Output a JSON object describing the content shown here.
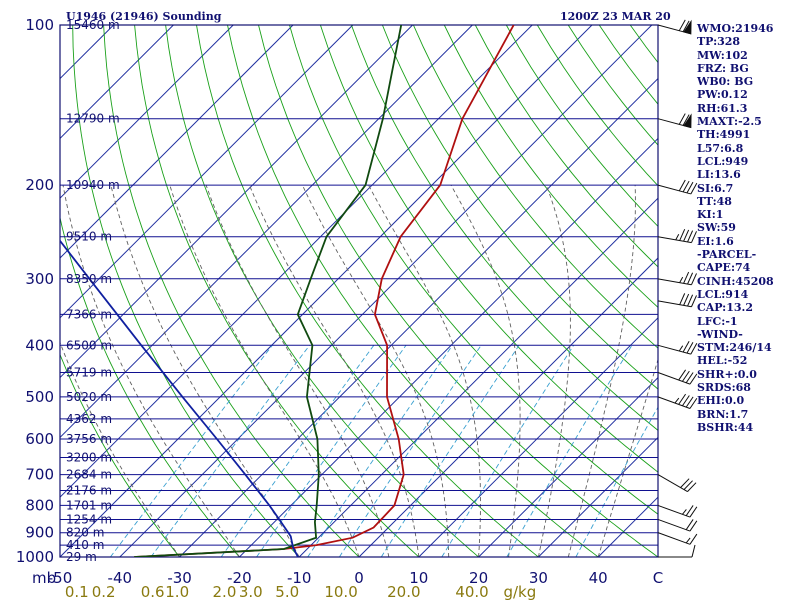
{
  "header": {
    "station": "U1946 (21946) Sounding",
    "time": "1200Z 23 MAR 20"
  },
  "indices": [
    "WMO:21946",
    "TP:328",
    "MW:102",
    "FRZ: BG",
    "WB0: BG",
    "PW:0.12",
    "RH:61.3",
    "MAXT:-2.5",
    "TH:4991",
    "L57:6.8",
    "LCL:949",
    "LI:13.6",
    "SI:6.7",
    "TT:48",
    "KI:1",
    "SW:59",
    "EI:1.6",
    "-PARCEL-",
    "CAPE:74",
    "CINH:45208",
    "LCL:914",
    "CAP:13.2",
    "LFC:-1",
    "-WIND-",
    "STM:246/14",
    "HEL:-52",
    "SHR+:0.0",
    "SRDS:68",
    "EHI:0.0",
    "BRN:1.7",
    "BSHR:44"
  ],
  "chart_data": {
    "type": "line",
    "pressure_levels": [
      100,
      200,
      300,
      400,
      500,
      600,
      700,
      800,
      900,
      1000
    ],
    "pressure_axis_unit": "mb",
    "temperature_ticks": [
      -50,
      -40,
      -30,
      -20,
      -10,
      0,
      10,
      20,
      30,
      40,
      50
    ],
    "temperature_tick_labels": [
      "-50",
      "-40",
      "-30",
      "-20",
      "-10",
      "0",
      "10",
      "20",
      "30",
      "40",
      "C"
    ],
    "mixing_ratio_ticks": [
      {
        "label": "0.1",
        "x": -47.2
      },
      {
        "label": "0.2",
        "x": -42.7
      },
      {
        "label": "0.6",
        "x": -34.5
      },
      {
        "label": "1.0",
        "x": -30.4
      },
      {
        "label": "2.0",
        "x": -22.5
      },
      {
        "label": "3.0",
        "x": -18.1
      },
      {
        "label": "5.0",
        "x": -12.0
      },
      {
        "label": "10.0",
        "x": -3.0
      },
      {
        "label": "20.0",
        "x": 7.5
      },
      {
        "label": "40.0",
        "x": 18.9
      },
      {
        "label": "g/kg",
        "x": 26.9
      }
    ],
    "height_labels": [
      {
        "p": 100,
        "label": "15460 m"
      },
      {
        "p": 150,
        "label": "12790 m"
      },
      {
        "p": 200,
        "label": "10940 m"
      },
      {
        "p": 250,
        "label": "9510 m"
      },
      {
        "p": 300,
        "label": "8350 m"
      },
      {
        "p": 350,
        "label": "7366 m"
      },
      {
        "p": 400,
        "label": "6500 m"
      },
      {
        "p": 450,
        "label": "5719 m"
      },
      {
        "p": 500,
        "label": "5020 m"
      },
      {
        "p": 550,
        "label": "4362 m"
      },
      {
        "p": 600,
        "label": "3756 m"
      },
      {
        "p": 650,
        "label": "3200 m"
      },
      {
        "p": 700,
        "label": "2684 m"
      },
      {
        "p": 750,
        "label": "2176 m"
      },
      {
        "p": 800,
        "label": "1701 m"
      },
      {
        "p": 850,
        "label": "1254 m"
      },
      {
        "p": 900,
        "label": "820 m"
      },
      {
        "p": 950,
        "label": "410 m"
      },
      {
        "p": 1000,
        "label": "29 m"
      }
    ],
    "series": [
      {
        "role": "temperature",
        "color": "#b01010",
        "points": [
          {
            "p": 1000,
            "t": -37.6
          },
          {
            "p": 966,
            "t": -13.9
          },
          {
            "p": 950,
            "t": -9.1
          },
          {
            "p": 920,
            "t": -4.3
          },
          {
            "p": 880,
            "t": -2.5
          },
          {
            "p": 800,
            "t": -2.7
          },
          {
            "p": 700,
            "t": -6.3
          },
          {
            "p": 600,
            "t": -13.1
          },
          {
            "p": 500,
            "t": -22.1
          },
          {
            "p": 400,
            "t": -30.7
          },
          {
            "p": 350,
            "t": -37.9
          },
          {
            "p": 300,
            "t": -42.7
          },
          {
            "p": 250,
            "t": -46.6
          },
          {
            "p": 200,
            "t": -48.6
          },
          {
            "p": 150,
            "t": -56.0
          },
          {
            "p": 100,
            "t": -63.1
          }
        ]
      },
      {
        "role": "dewpoint",
        "color": "#104a10",
        "points": [
          {
            "p": 1000,
            "t": -37.6
          },
          {
            "p": 966,
            "t": -13.9
          },
          {
            "p": 920,
            "t": -10.4
          },
          {
            "p": 860,
            "t": -13.2
          },
          {
            "p": 800,
            "t": -15.7
          },
          {
            "p": 700,
            "t": -20.5
          },
          {
            "p": 600,
            "t": -26.7
          },
          {
            "p": 500,
            "t": -35.5
          },
          {
            "p": 400,
            "t": -43.2
          },
          {
            "p": 350,
            "t": -50.8
          },
          {
            "p": 300,
            "t": -54.6
          },
          {
            "p": 250,
            "t": -59.0
          },
          {
            "p": 200,
            "t": -61.1
          },
          {
            "p": 150,
            "t": -69.3
          },
          {
            "p": 100,
            "t": -81.9
          }
        ]
      },
      {
        "role": "parcel",
        "color": "#1020a0",
        "points": [
          {
            "p": 1000,
            "t": -10.2
          },
          {
            "p": 960,
            "t": -12.6
          },
          {
            "p": 914,
            "t": -14.9
          },
          {
            "p": 850,
            "t": -19.6
          },
          {
            "p": 800,
            "t": -23.6
          },
          {
            "p": 700,
            "t": -32.8
          },
          {
            "p": 600,
            "t": -43.5
          },
          {
            "p": 500,
            "t": -56.3
          },
          {
            "p": 400,
            "t": -71.8
          },
          {
            "p": 300,
            "t": -91.6
          },
          {
            "p": 250,
            "t": -104.1
          },
          {
            "p": 200,
            "t": -119.1
          },
          {
            "p": 150,
            "t": -138.2
          },
          {
            "p": 120,
            "t": -152.5
          }
        ]
      }
    ],
    "winds": [
      {
        "p": 1000,
        "dir": 270,
        "spd": 10
      },
      {
        "p": 900,
        "dir": 290,
        "spd": 15
      },
      {
        "p": 850,
        "dir": 290,
        "spd": 20
      },
      {
        "p": 800,
        "dir": 290,
        "spd": 25
      },
      {
        "p": 700,
        "dir": 300,
        "spd": 30
      },
      {
        "p": 500,
        "dir": 290,
        "spd": 45
      },
      {
        "p": 450,
        "dir": 290,
        "spd": 40
      },
      {
        "p": 400,
        "dir": 285,
        "spd": 35
      },
      {
        "p": 330,
        "dir": 280,
        "spd": 40
      },
      {
        "p": 300,
        "dir": 280,
        "spd": 35
      },
      {
        "p": 250,
        "dir": 280,
        "spd": 45
      },
      {
        "p": 200,
        "dir": 285,
        "spd": 40
      },
      {
        "p": 150,
        "dir": 285,
        "spd": 70
      },
      {
        "p": 100,
        "dir": 285,
        "spd": 70
      }
    ],
    "isotherm_start": -150,
    "isotherm_end": 50,
    "isotherm_step": 10,
    "dry_adiabats_theta_c": [
      -30,
      -20,
      -10,
      0,
      10,
      20,
      30,
      40,
      50,
      60,
      70,
      80,
      90,
      100,
      110,
      120,
      130,
      140,
      150,
      160,
      170,
      180,
      190,
      200
    ],
    "moist_adiabats_c": [
      -30,
      -20,
      -10,
      0,
      5,
      10,
      15,
      20,
      25,
      30,
      35,
      40
    ],
    "mixing_ratio_lines_gkg": [
      0.1,
      0.2,
      0.6,
      1.0,
      2.0,
      3.0,
      5.0,
      10.0,
      20.0,
      40.0
    ],
    "xlim": [
      -50,
      50
    ],
    "ylim": [
      1000,
      100
    ]
  }
}
